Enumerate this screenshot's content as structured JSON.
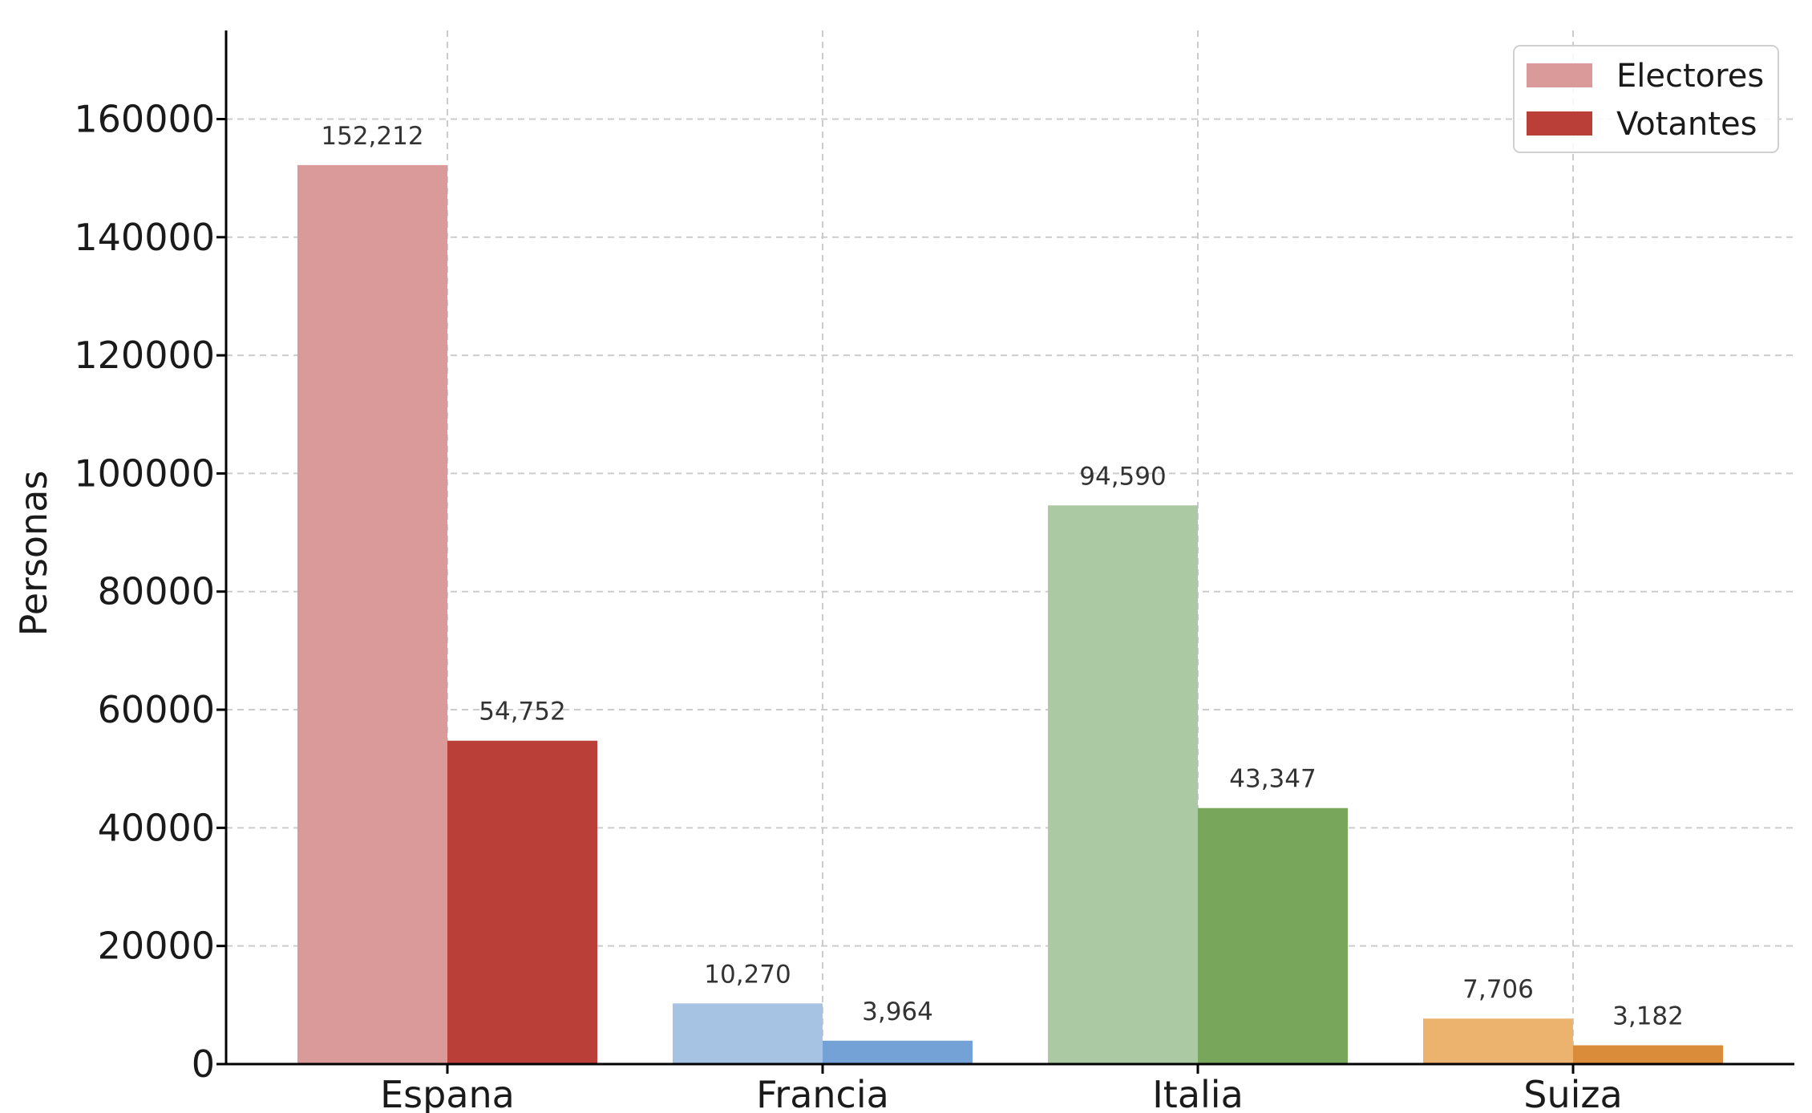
{
  "chart_data": {
    "type": "bar",
    "categories": [
      "Espana",
      "Francia",
      "Italia",
      "Suiza"
    ],
    "series": [
      {
        "name": "Electores",
        "values": [
          152212,
          10270,
          94590,
          7706
        ]
      },
      {
        "name": "Votantes",
        "values": [
          54752,
          3964,
          43347,
          3182
        ]
      }
    ],
    "value_labels": [
      [
        "152,212",
        "10,270",
        "94,590",
        "7,706"
      ],
      [
        "54,752",
        "3,964",
        "43,347",
        "3,182"
      ]
    ],
    "category_colors": [
      {
        "light": "#da9a9a",
        "dark": "#bb3f39"
      },
      {
        "light": "#a6c3e4",
        "dark": "#74a2d6"
      },
      {
        "light": "#abc9a2",
        "dark": "#78a65a"
      },
      {
        "light": "#ecb36f",
        "dark": "#da8c3b"
      }
    ],
    "legend_colors": [
      "#da9a9a",
      "#bb3f39"
    ],
    "ylabel": "Personas",
    "xlabel": "",
    "title": "",
    "ylim": [
      0,
      175000
    ],
    "yticks": [
      0,
      20000,
      40000,
      60000,
      80000,
      100000,
      120000,
      140000,
      160000
    ],
    "grid": true,
    "legend_position": "top-right"
  }
}
